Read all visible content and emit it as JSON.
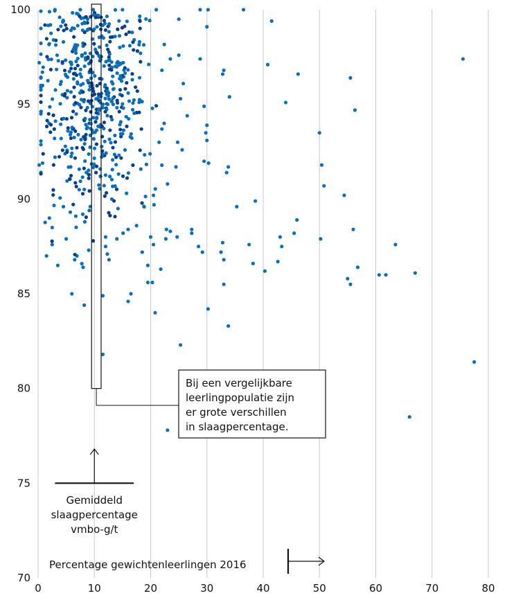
{
  "chart_data": {
    "type": "scatter",
    "title": "",
    "xlabel": "Percentage gewichtenleerlingen 2016",
    "ylabel": "",
    "xlim": [
      0,
      80
    ],
    "ylim": [
      70,
      100
    ],
    "xticks": [
      "0",
      "10",
      "20",
      "30",
      "40",
      "50",
      "60",
      "70",
      "80"
    ],
    "yticks": [
      "70",
      "75",
      "80",
      "85",
      "90",
      "95",
      "100"
    ],
    "grid": "vertical",
    "point_color": "#0a6fb8",
    "highlight_point_color": "#0a3f86",
    "annotations": {
      "callout_lines": [
        "Bij een vergelijkbare",
        "leerlingpopulatie zijn",
        "er grote verschillen",
        "in slaagpercentage."
      ],
      "average_lines": [
        "Gemiddeld",
        "slaagpercentage",
        "vmbo-g/t"
      ],
      "average_value": 75,
      "average_x_range": [
        3,
        17
      ],
      "highlight_box": {
        "x_range": [
          9.5,
          11.2
        ],
        "y_range": [
          80,
          100
        ]
      }
    },
    "series": [
      {
        "points": [
          [
            75.5,
            97.4
          ],
          [
            77.5,
            81.4
          ],
          [
            66.0,
            78.5
          ],
          [
            67.0,
            86.1
          ],
          [
            63.5,
            87.6
          ],
          [
            61.8,
            86.0
          ],
          [
            60.6,
            86.0
          ],
          [
            56.8,
            86.4
          ],
          [
            55.5,
            85.5
          ],
          [
            55.0,
            85.8
          ],
          [
            55.5,
            96.4
          ],
          [
            56.3,
            94.7
          ],
          [
            56.0,
            88.4
          ],
          [
            54.4,
            90.2
          ],
          [
            50.8,
            90.7
          ],
          [
            50.4,
            91.8
          ],
          [
            50.0,
            93.5
          ],
          [
            50.2,
            87.9
          ],
          [
            46.2,
            96.6
          ],
          [
            46.0,
            88.9
          ],
          [
            45.5,
            88.2
          ],
          [
            44.0,
            95.1
          ],
          [
            43.3,
            87.5
          ],
          [
            43.0,
            88.0
          ],
          [
            42.6,
            86.7
          ],
          [
            41.5,
            99.4
          ],
          [
            40.8,
            97.1
          ],
          [
            40.3,
            86.2
          ],
          [
            38.6,
            89.9
          ],
          [
            37.5,
            87.6
          ],
          [
            38.2,
            86.6
          ],
          [
            36.5,
            100.0
          ],
          [
            35.3,
            89.6
          ],
          [
            34.0,
            95.4
          ],
          [
            33.8,
            91.7
          ],
          [
            33.5,
            91.4
          ],
          [
            33.8,
            83.3
          ],
          [
            33.0,
            96.8
          ],
          [
            32.8,
            96.6
          ],
          [
            32.8,
            87.7
          ],
          [
            32.5,
            87.2
          ],
          [
            33.0,
            86.8
          ],
          [
            33.0,
            85.5
          ],
          [
            30.2,
            100.0
          ],
          [
            30.0,
            99.1
          ],
          [
            30.2,
            84.2
          ],
          [
            30.3,
            91.9
          ],
          [
            29.5,
            92.0
          ],
          [
            30.0,
            93.1
          ],
          [
            30.0,
            93.9
          ],
          [
            29.5,
            94.9
          ],
          [
            29.8,
            93.5
          ],
          [
            28.8,
            100.0
          ],
          [
            28.8,
            97.4
          ],
          [
            28.5,
            87.5
          ],
          [
            29.2,
            87.2
          ],
          [
            27.3,
            88.2
          ],
          [
            27.3,
            88.4
          ],
          [
            26.5,
            94.4
          ],
          [
            25.8,
            96.1
          ],
          [
            25.3,
            95.3
          ],
          [
            25.0,
            99.5
          ],
          [
            25.0,
            97.6
          ],
          [
            25.6,
            92.6
          ],
          [
            24.8,
            93.0
          ],
          [
            25.3,
            82.3
          ],
          [
            24.7,
            88.0
          ],
          [
            24.5,
            91.7
          ],
          [
            23.5,
            88.3
          ],
          [
            23.0,
            77.8
          ],
          [
            22.7,
            87.9
          ],
          [
            22.8,
            88.4
          ],
          [
            23.0,
            90.8
          ],
          [
            23.5,
            97.4
          ],
          [
            22.0,
            96.8
          ],
          [
            22.4,
            94.0
          ],
          [
            22.0,
            93.7
          ],
          [
            21.8,
            86.3
          ],
          [
            21.5,
            93.0
          ],
          [
            20.5,
            90.2
          ],
          [
            20.6,
            89.7
          ],
          [
            20.0,
            88.0
          ],
          [
            20.5,
            87.6
          ],
          [
            20.3,
            85.6
          ],
          [
            20.8,
            84.0
          ],
          [
            21.0,
            100.0
          ],
          [
            19.5,
            86.5
          ],
          [
            19.5,
            85.6
          ],
          [
            16.0,
            84.6
          ],
          [
            16.5,
            85.0
          ],
          [
            15.0,
            100.0
          ],
          [
            11.5,
            81.8
          ],
          [
            11.5,
            84.9
          ],
          [
            12.0,
            88.0
          ],
          [
            12.0,
            87.5
          ],
          [
            8.2,
            84.4
          ],
          [
            6.0,
            85.0
          ],
          [
            18.5,
            87.2
          ],
          [
            14.0,
            87.9
          ],
          [
            6.5,
            86.8
          ],
          [
            5.0,
            87.9
          ],
          [
            2.5,
            87.6
          ],
          [
            1.5,
            87.0
          ],
          [
            2.0,
            89.0
          ],
          [
            2.5,
            88.5
          ],
          [
            3.5,
            86.5
          ],
          [
            9.0,
            87.3
          ],
          [
            16.3,
            98.1
          ],
          [
            4.1,
            96.2
          ],
          [
            0.8,
            96.0
          ],
          [
            0.5,
            94.5
          ],
          [
            0.2,
            91.8
          ],
          [
            0.8,
            91.9
          ],
          [
            3.0,
            100.0
          ],
          [
            7.5,
            100.0
          ],
          [
            9.8,
            100.0
          ],
          [
            2.2,
            99.2
          ],
          [
            4.5,
            99.4
          ],
          [
            2.0,
            98.2
          ],
          [
            4.5,
            98.3
          ],
          [
            4.1,
            93.2
          ],
          [
            4.8,
            92.4
          ],
          [
            0.2,
            97.2
          ],
          [
            5.0,
            96.5
          ],
          [
            8.8,
            99.5
          ],
          [
            18.2,
            97.7
          ],
          [
            7.0,
            96.1
          ],
          [
            6.1,
            93.7
          ],
          [
            5.8,
            91.7
          ],
          [
            4.5,
            89.6
          ],
          [
            9.0,
            91.3
          ],
          [
            6.7,
            89.1
          ],
          [
            7.3,
            90.5
          ],
          [
            9.1,
            89.4
          ],
          [
            8.3,
            88.8
          ],
          [
            13.1,
            90.0
          ],
          [
            14.2,
            89.5
          ],
          [
            15.1,
            88.2
          ],
          [
            17.5,
            88.6
          ],
          [
            6.9,
            87.0
          ],
          [
            8.0,
            86.4
          ],
          [
            12.6,
            86.8
          ],
          [
            16.0,
            88.4
          ],
          [
            12.3,
            87.1
          ]
        ]
      },
      {
        "points": [
          [
            9.4,
            97.3
          ],
          [
            11.0,
            96.1
          ],
          [
            10.8,
            95.2
          ],
          [
            11.4,
            93.3
          ],
          [
            10.4,
            92.9
          ],
          [
            9.1,
            94.0
          ],
          [
            9.6,
            96.0
          ],
          [
            11.8,
            92.3
          ],
          [
            10.3,
            91.4
          ],
          [
            9.0,
            91.1
          ],
          [
            8.5,
            93.4
          ],
          [
            10.5,
            97.7
          ],
          [
            7.8,
            97.6
          ],
          [
            9.8,
            98.9
          ],
          [
            12.1,
            94.8
          ],
          [
            11.2,
            99.6
          ],
          [
            6.4,
            95.9
          ],
          [
            9.5,
            95.2
          ]
        ]
      },
      {
        "name": "cloud",
        "cloud": true,
        "count": 520,
        "seed": 7,
        "x_mean": 10.0,
        "x_std": 4.8,
        "x_range": [
          0.5,
          25.0
        ],
        "y_mean": 95.3,
        "y_std": 2.9,
        "y_range": [
          85.0,
          100.0
        ]
      }
    ]
  }
}
